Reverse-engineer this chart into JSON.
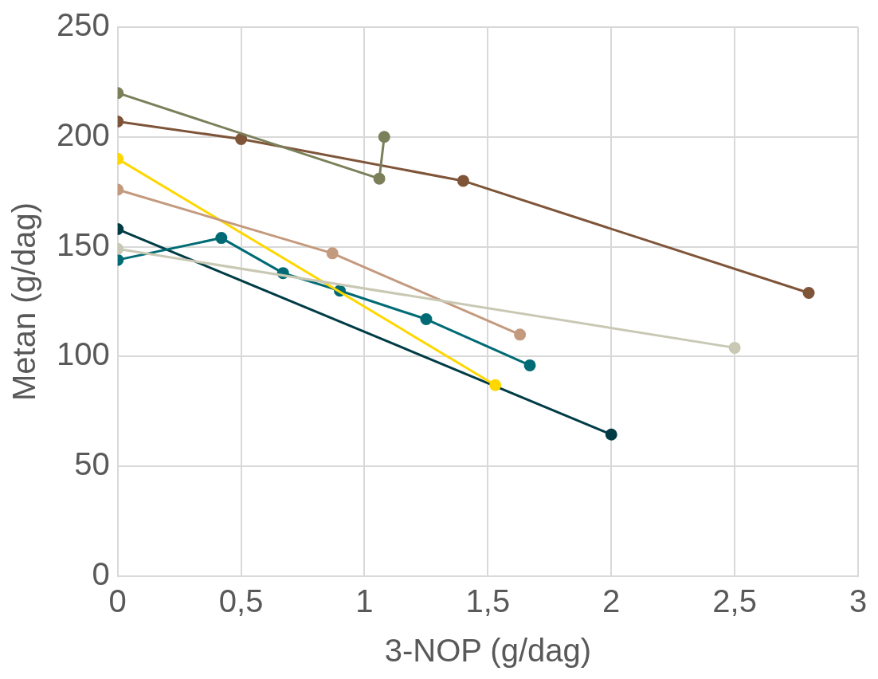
{
  "chart_data": {
    "type": "line",
    "xlabel": "3-NOP (g/dag)",
    "ylabel": "Metan (g/dag)",
    "xlim": [
      0,
      3
    ],
    "xticks": [
      0,
      {
        "value": 0.5,
        "label": "0,5"
      },
      1,
      {
        "value": 1.5,
        "label": "1,5"
      },
      2,
      {
        "value": 2.5,
        "label": "2,5"
      },
      3
    ],
    "ylim": [
      0,
      250
    ],
    "yticks": [
      0,
      50,
      100,
      150,
      200,
      250
    ],
    "grid": true,
    "legend": false,
    "marker": "circle",
    "line_style": "solid",
    "series": [
      {
        "color": "#c8c8b4",
        "x": [
          0,
          2.5
        ],
        "values": [
          149,
          104
        ]
      },
      {
        "color": "#7b7f5a",
        "x": [
          0,
          1.06,
          1.08
        ],
        "values": [
          220,
          181,
          200
        ]
      },
      {
        "color": "#7f5539",
        "x": [
          0,
          0.5,
          1.4,
          2.8
        ],
        "values": [
          207,
          199,
          180,
          129
        ]
      },
      {
        "color": "#c49a7e",
        "x": [
          0,
          0.87,
          1.63
        ],
        "values": [
          176,
          147,
          110
        ]
      },
      {
        "color": "#ffd700",
        "x": [
          0,
          1.53
        ],
        "values": [
          190,
          87
        ]
      },
      {
        "color": "#006b75",
        "x": [
          0,
          0.42,
          0.67,
          0.9,
          1.25,
          1.67
        ],
        "values": [
          144,
          154,
          138,
          130,
          117,
          96
        ]
      },
      {
        "color": "#003c46",
        "x": [
          0,
          2
        ],
        "values": [
          158,
          64.5
        ]
      }
    ]
  }
}
